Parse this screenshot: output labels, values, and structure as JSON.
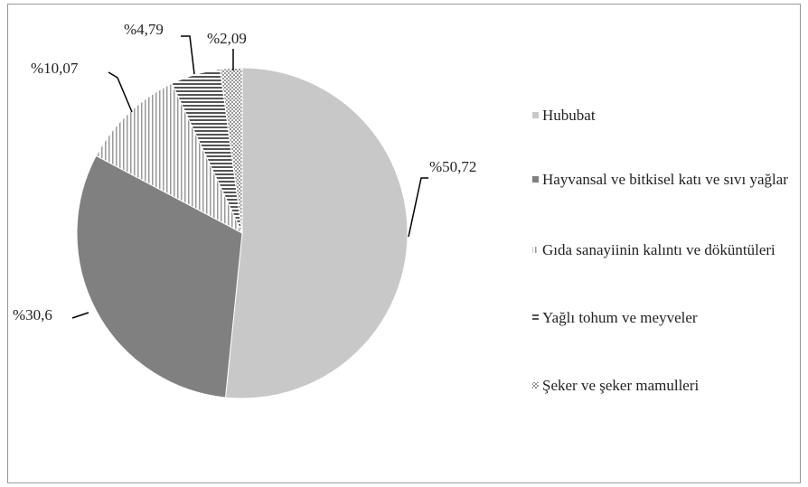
{
  "chart_data": {
    "type": "pie",
    "categories": [
      "Hububat",
      "Hayvansal ve bitkisel katı ve sıvı yağlar",
      "Gıda sanayiinin kalıntı ve döküntüleri",
      "Yağlı tohum ve meyveler",
      "Şeker ve şeker mamulleri"
    ],
    "values": [
      50.72,
      30.6,
      10.07,
      4.79,
      2.09
    ],
    "value_labels": [
      "%50,72",
      "%30,6",
      "%10,07",
      "%4,79",
      "%2,09"
    ],
    "colors": [
      "#c8c8c8",
      "#808080",
      "url(#vstripe)",
      "url(#hstripe)",
      "url(#dots)"
    ],
    "legend": "right"
  }
}
